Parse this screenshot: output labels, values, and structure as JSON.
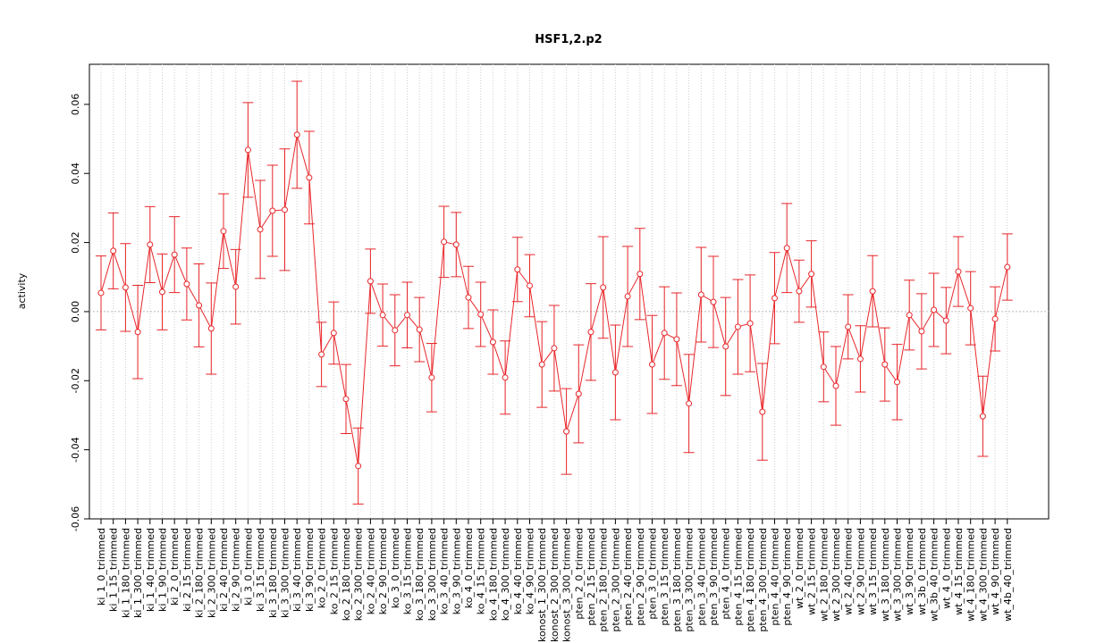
{
  "chart_data": {
    "type": "line",
    "title": "HSF1,2.p2",
    "y_label": "activity",
    "categories": [
      "ki_1_0_trimmed",
      "ki_1_15_trimmed",
      "ki_1_180_trimmed",
      "ki_1_300_trimmed",
      "ki_1_40_trimmed",
      "ki_1_90_trimmed",
      "ki_2_0_trimmed",
      "ki_2_15_trimmed",
      "ki_2_180_trimmed",
      "ki_2_300_trimmed",
      "ki_2_40_trimmed",
      "ki_2_90_trimmed",
      "ki_3_0_trimmed",
      "ki_3_15_trimmed",
      "ki_3_180_trimmed",
      "ki_3_300_trimmed",
      "ki_3_40_trimmed",
      "ki_3_90_trimmed",
      "ko_2_0_trimmed",
      "ko_2_15_trimmed",
      "ko_2_180_trimmed",
      "ko_2_300_trimmed",
      "ko_2_40_trimmed",
      "ko_2_90_trimmed",
      "ko_3_0_trimmed",
      "ko_3_15_trimmed",
      "ko_3_180_trimmed",
      "ko_3_300_trimmed",
      "ko_3_40_trimmed",
      "ko_3_90_trimmed",
      "ko_4_0_trimmed",
      "ko_4_15_trimmed",
      "ko_4_180_trimmed",
      "ko_4_300_trimmed",
      "ko_4_40_trimmed",
      "ko_4_90_trimmed",
      "konost_1_300_trimmed",
      "konost_2_300_trimmed",
      "konost_3_300_trimmed",
      "pten_2_0_trimmed",
      "pten_2_15_trimmed",
      "pten_2_180_trimmed",
      "pten_2_300_trimmed",
      "pten_2_40_trimmed",
      "pten_2_90_trimmed",
      "pten_3_0_trimmed",
      "pten_3_15_trimmed",
      "pten_3_180_trimmed",
      "pten_3_300_trimmed",
      "pten_3_40_trimmed",
      "pten_3_90_trimmed",
      "pten_4_0_trimmed",
      "pten_4_15_trimmed",
      "pten_4_180_trimmed",
      "pten_4_300_trimmed",
      "pten_4_40_trimmed",
      "pten_4_90_trimmed",
      "wt_2_0_trimmed",
      "wt_2_15_trimmed",
      "wt_2_180_trimmed",
      "wt_2_300_trimmed",
      "wt_2_40_trimmed",
      "wt_2_90_trimmed",
      "wt_3_15_trimmed",
      "wt_3_180_trimmed",
      "wt_3_300_trimmed",
      "wt_3_90_trimmed",
      "wt_3b_0_trimmed",
      "wt_3b_40_trimmed",
      "wt_4_0_trimmed",
      "wt_4_15_trimmed",
      "wt_4_180_trimmed",
      "wt_4_300_trimmed",
      "wt_4_90_trimmed",
      "wt_4b_40_trimmed"
    ],
    "series": [
      {
        "color": "#e8262a",
        "values": [
          0.0054,
          0.0176,
          0.007,
          -0.0059,
          0.0194,
          0.0057,
          0.0165,
          0.008,
          0.0018,
          -0.0049,
          0.0233,
          0.0072,
          0.0468,
          0.0238,
          0.0292,
          0.0295,
          0.0512,
          0.0388,
          -0.0124,
          -0.0062,
          -0.0253,
          -0.0447,
          0.0088,
          -0.001,
          -0.0054,
          -0.001,
          -0.0052,
          -0.0191,
          0.0202,
          0.0194,
          0.0041,
          -0.0008,
          -0.0088,
          -0.0191,
          0.0122,
          0.0075,
          -0.0153,
          -0.0106,
          -0.0347,
          -0.0238,
          -0.0059,
          0.007,
          -0.0176,
          0.0044,
          0.0109,
          -0.0153,
          -0.0062,
          -0.008,
          -0.0266,
          0.0049,
          0.0028,
          -0.0101,
          -0.0044,
          -0.0034,
          -0.029,
          0.0039,
          0.0184,
          0.0059,
          0.0109,
          -0.016,
          -0.0215,
          -0.0044,
          -0.0137,
          0.0059,
          -0.0153,
          -0.0204,
          -0.001,
          -0.0057,
          0.0005,
          -0.0026,
          0.0116,
          0.001,
          -0.0303,
          -0.0021,
          0.0129
        ],
        "errors": [
          0.0107,
          0.011,
          0.0127,
          0.0135,
          0.011,
          0.011,
          0.011,
          0.0104,
          0.012,
          0.0132,
          0.0108,
          0.0108,
          0.0137,
          0.0142,
          0.0132,
          0.0176,
          0.0155,
          0.0134,
          0.0093,
          0.009,
          0.01,
          0.011,
          0.0093,
          0.009,
          0.0103,
          0.0095,
          0.0093,
          0.0099,
          0.0103,
          0.0093,
          0.009,
          0.0093,
          0.0093,
          0.0106,
          0.0093,
          0.009,
          0.0124,
          0.0124,
          0.0124,
          0.0142,
          0.014,
          0.0147,
          0.0137,
          0.0145,
          0.0132,
          0.0142,
          0.0134,
          0.0134,
          0.0142,
          0.0137,
          0.0132,
          0.0142,
          0.0137,
          0.014,
          0.014,
          0.0132,
          0.0129,
          0.009,
          0.0096,
          0.0101,
          0.0114,
          0.0093,
          0.0096,
          0.0103,
          0.0106,
          0.0109,
          0.0101,
          0.0109,
          0.0106,
          0.0096,
          0.0101,
          0.0106,
          0.0116,
          0.0093,
          0.0096
        ]
      }
    ],
    "ylim": [
      -0.06,
      0.0716
    ],
    "yticks": [
      {
        "value": -0.06,
        "label": "-0.06"
      },
      {
        "value": -0.04,
        "label": "-0.04"
      },
      {
        "value": -0.02,
        "label": "-0.02"
      },
      {
        "value": 0,
        "label": "0.00"
      },
      {
        "value": 0.02,
        "label": "0.02"
      },
      {
        "value": 0.04,
        "label": "0.04"
      },
      {
        "value": 0.06,
        "label": "0.06"
      }
    ],
    "grid": true
  }
}
